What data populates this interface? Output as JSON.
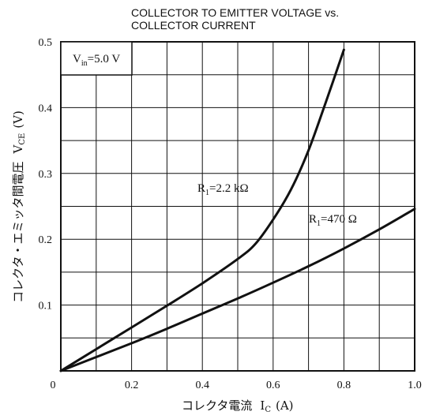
{
  "chart_data": {
    "type": "line",
    "title": "COLLECTOR TO EMITTER VOLTAGE vs.",
    "subtitle": "COLLECTOR CURRENT",
    "xlabel": "コレクタ電流",
    "xlabel_symbol": "I",
    "xlabel_sub": "C",
    "xlabel_unit": "(A)",
    "ylabel": "コレクタ・エミッタ間電圧",
    "ylabel_symbol": "V",
    "ylabel_sub": "CE",
    "ylabel_unit": "(V)",
    "xlim": [
      0,
      1.0
    ],
    "ylim": [
      0,
      0.5
    ],
    "x_ticks": [
      0,
      0.2,
      0.4,
      0.6,
      0.8,
      1.0
    ],
    "x_tick_labels": [
      "0",
      "0.2",
      "0.4",
      "0.6",
      "0.8",
      "1.0"
    ],
    "y_ticks": [
      0.1,
      0.2,
      0.3,
      0.4,
      0.5
    ],
    "y_tick_labels": [
      "0.1",
      "0.2",
      "0.3",
      "0.4",
      "0.5"
    ],
    "x_grid_step": 0.1,
    "y_grid_step": 0.05,
    "grid": true,
    "legend": "none",
    "condition": {
      "symbol": "V",
      "sub": "in",
      "value": "=5.0 V"
    },
    "series": [
      {
        "label_symbol": "R",
        "label_sub": "1",
        "label_value": "=2.2 kΩ",
        "x": [
          0,
          0.1,
          0.2,
          0.3,
          0.4,
          0.5,
          0.55,
          0.6,
          0.65,
          0.7,
          0.75,
          0.8
        ],
        "y": [
          0,
          0.033,
          0.066,
          0.099,
          0.133,
          0.17,
          0.193,
          0.23,
          0.275,
          0.335,
          0.41,
          0.488
        ]
      },
      {
        "label_symbol": "R",
        "label_sub": "1",
        "label_value": "=470 Ω",
        "x": [
          0,
          0.1,
          0.2,
          0.3,
          0.4,
          0.5,
          0.6,
          0.7,
          0.8,
          0.9,
          1.0
        ],
        "y": [
          0,
          0.021,
          0.042,
          0.064,
          0.087,
          0.11,
          0.134,
          0.159,
          0.186,
          0.215,
          0.246
        ]
      }
    ]
  }
}
